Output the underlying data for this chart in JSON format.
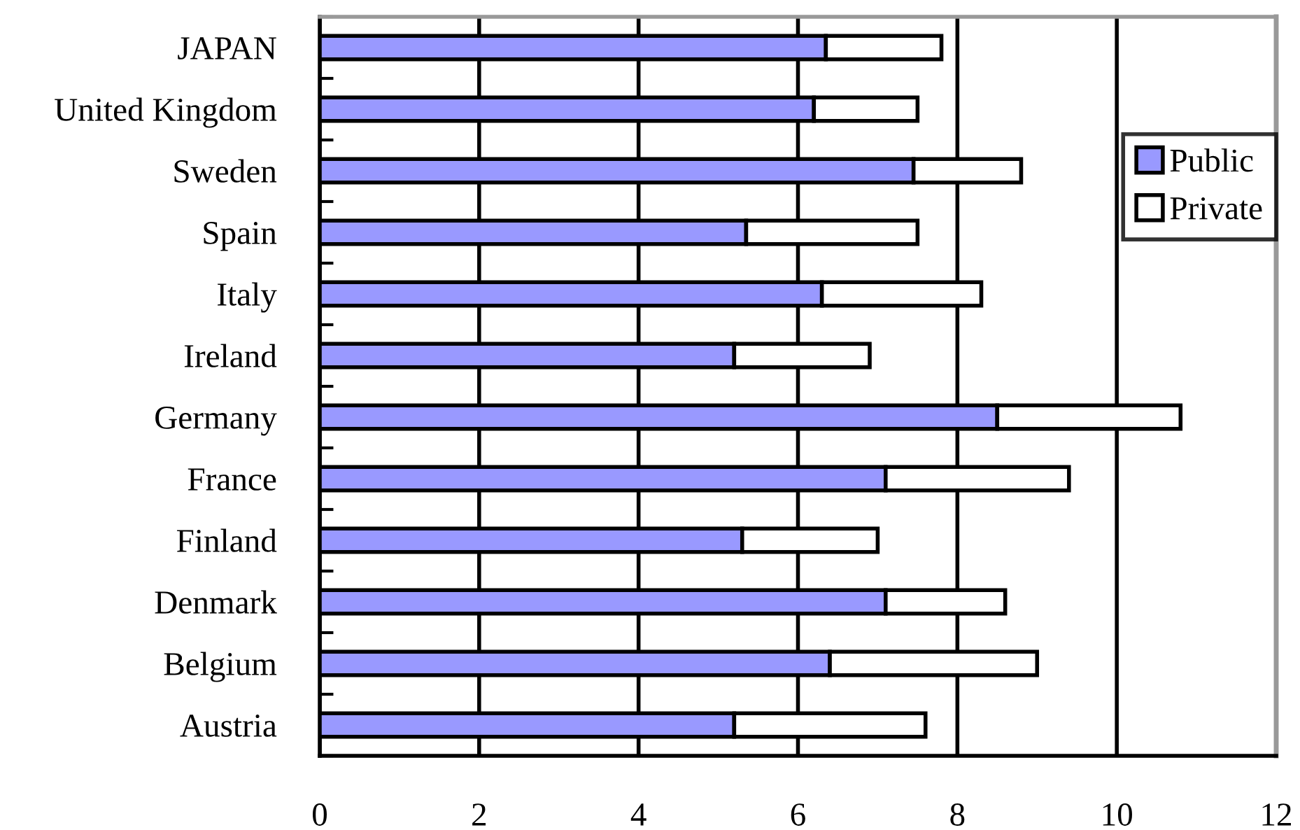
{
  "chart_data": {
    "type": "bar",
    "orientation": "horizontal",
    "stacked": true,
    "categories": [
      "JAPAN",
      "United Kingdom",
      "Sweden",
      "Spain",
      "Italy",
      "Ireland",
      "Germany",
      "France",
      "Finland",
      "Denmark",
      "Belgium",
      "Austria"
    ],
    "series": [
      {
        "name": "Public",
        "color": "#9999ff",
        "values": [
          6.35,
          6.2,
          7.45,
          5.35,
          6.3,
          5.2,
          8.5,
          7.1,
          5.3,
          7.1,
          6.4,
          5.2
        ]
      },
      {
        "name": "Private",
        "color": "#ffffff",
        "values": [
          1.45,
          1.3,
          1.35,
          2.15,
          2.0,
          1.7,
          2.3,
          2.3,
          1.7,
          1.5,
          2.6,
          2.4
        ]
      }
    ],
    "xlim": [
      0,
      12
    ],
    "xticks": [
      0,
      2,
      4,
      6,
      8,
      10,
      12
    ],
    "grid": "x",
    "legend": "right"
  }
}
